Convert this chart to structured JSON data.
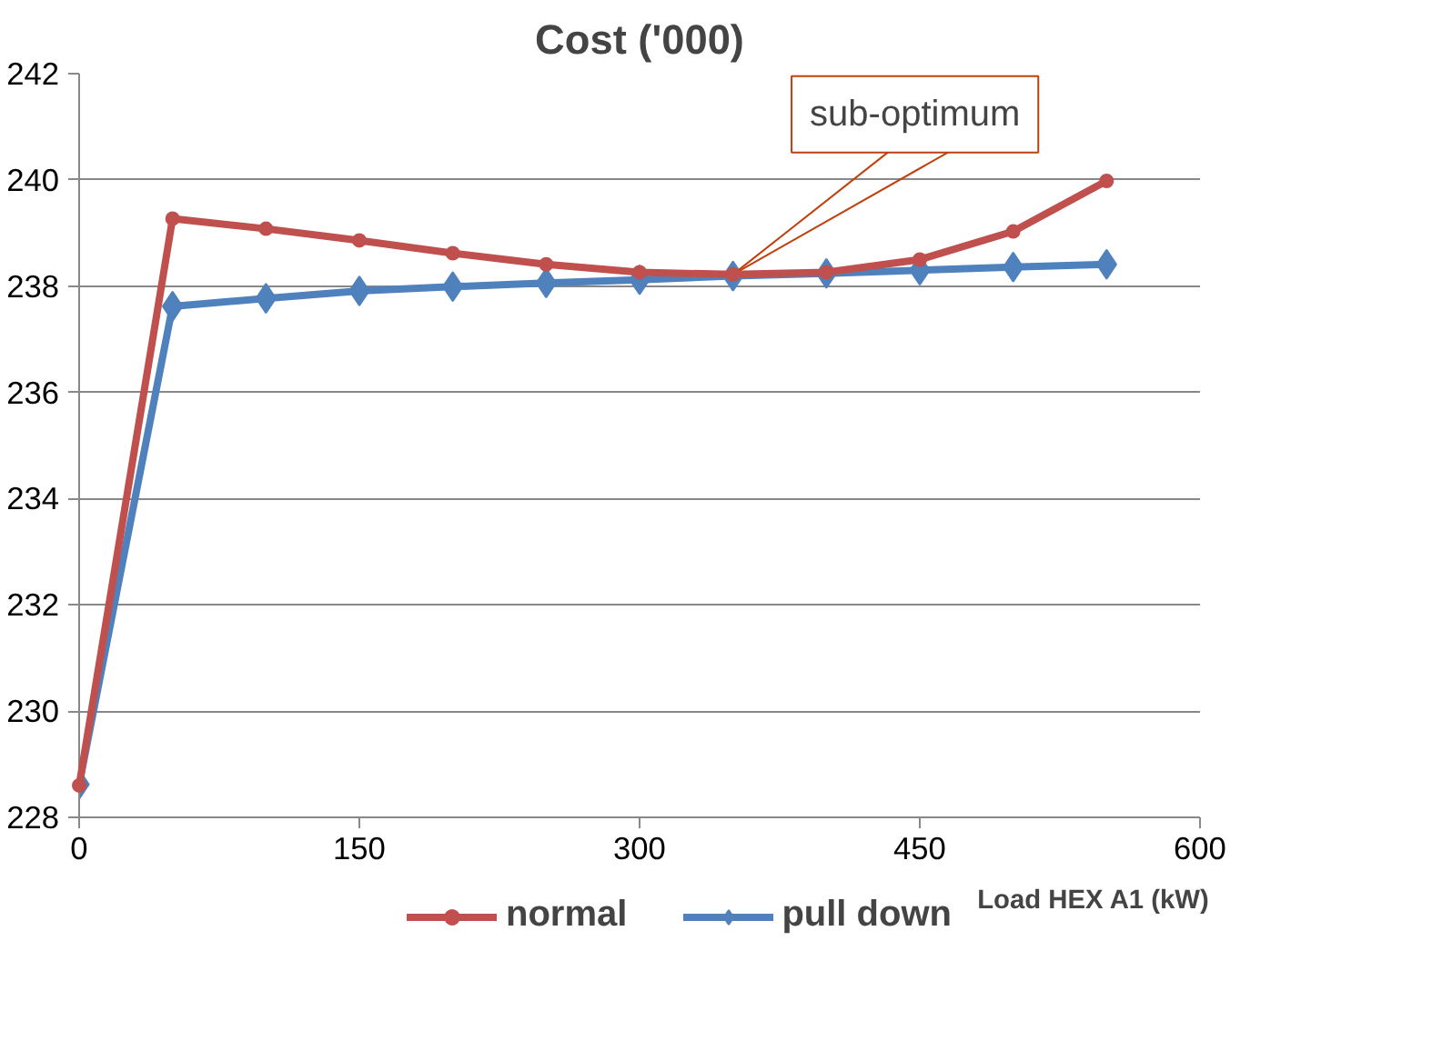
{
  "chart_data": {
    "type": "line",
    "title": "Cost ('000)",
    "xlabel": "Load HEX A1 (kW)",
    "x": [
      0,
      50,
      100,
      150,
      200,
      250,
      300,
      350,
      400,
      450,
      500,
      550
    ],
    "series": [
      {
        "name": "normal",
        "color": "#c0504d",
        "marker": "circle",
        "values": [
          228.6,
          239.27,
          239.08,
          238.86,
          238.62,
          238.41,
          238.26,
          238.22,
          238.26,
          238.5,
          239.03,
          239.98
        ]
      },
      {
        "name": "pull down",
        "color": "#4f81bd",
        "marker": "diamond",
        "values": [
          228.62,
          237.62,
          237.77,
          237.91,
          237.99,
          238.06,
          238.12,
          238.19,
          238.24,
          238.3,
          238.36,
          238.41
        ]
      }
    ],
    "xlim": [
      0,
      600
    ],
    "xticks": [
      0,
      150,
      300,
      450,
      600
    ],
    "ylim": [
      228,
      242
    ],
    "yticks": [
      228,
      230,
      232,
      234,
      236,
      238,
      240,
      242
    ],
    "grid": "y",
    "legend": "bottom",
    "line_style": "solid",
    "annotations": [
      {
        "text": "sub-optimum",
        "x": 350,
        "y": 238.22
      }
    ]
  }
}
